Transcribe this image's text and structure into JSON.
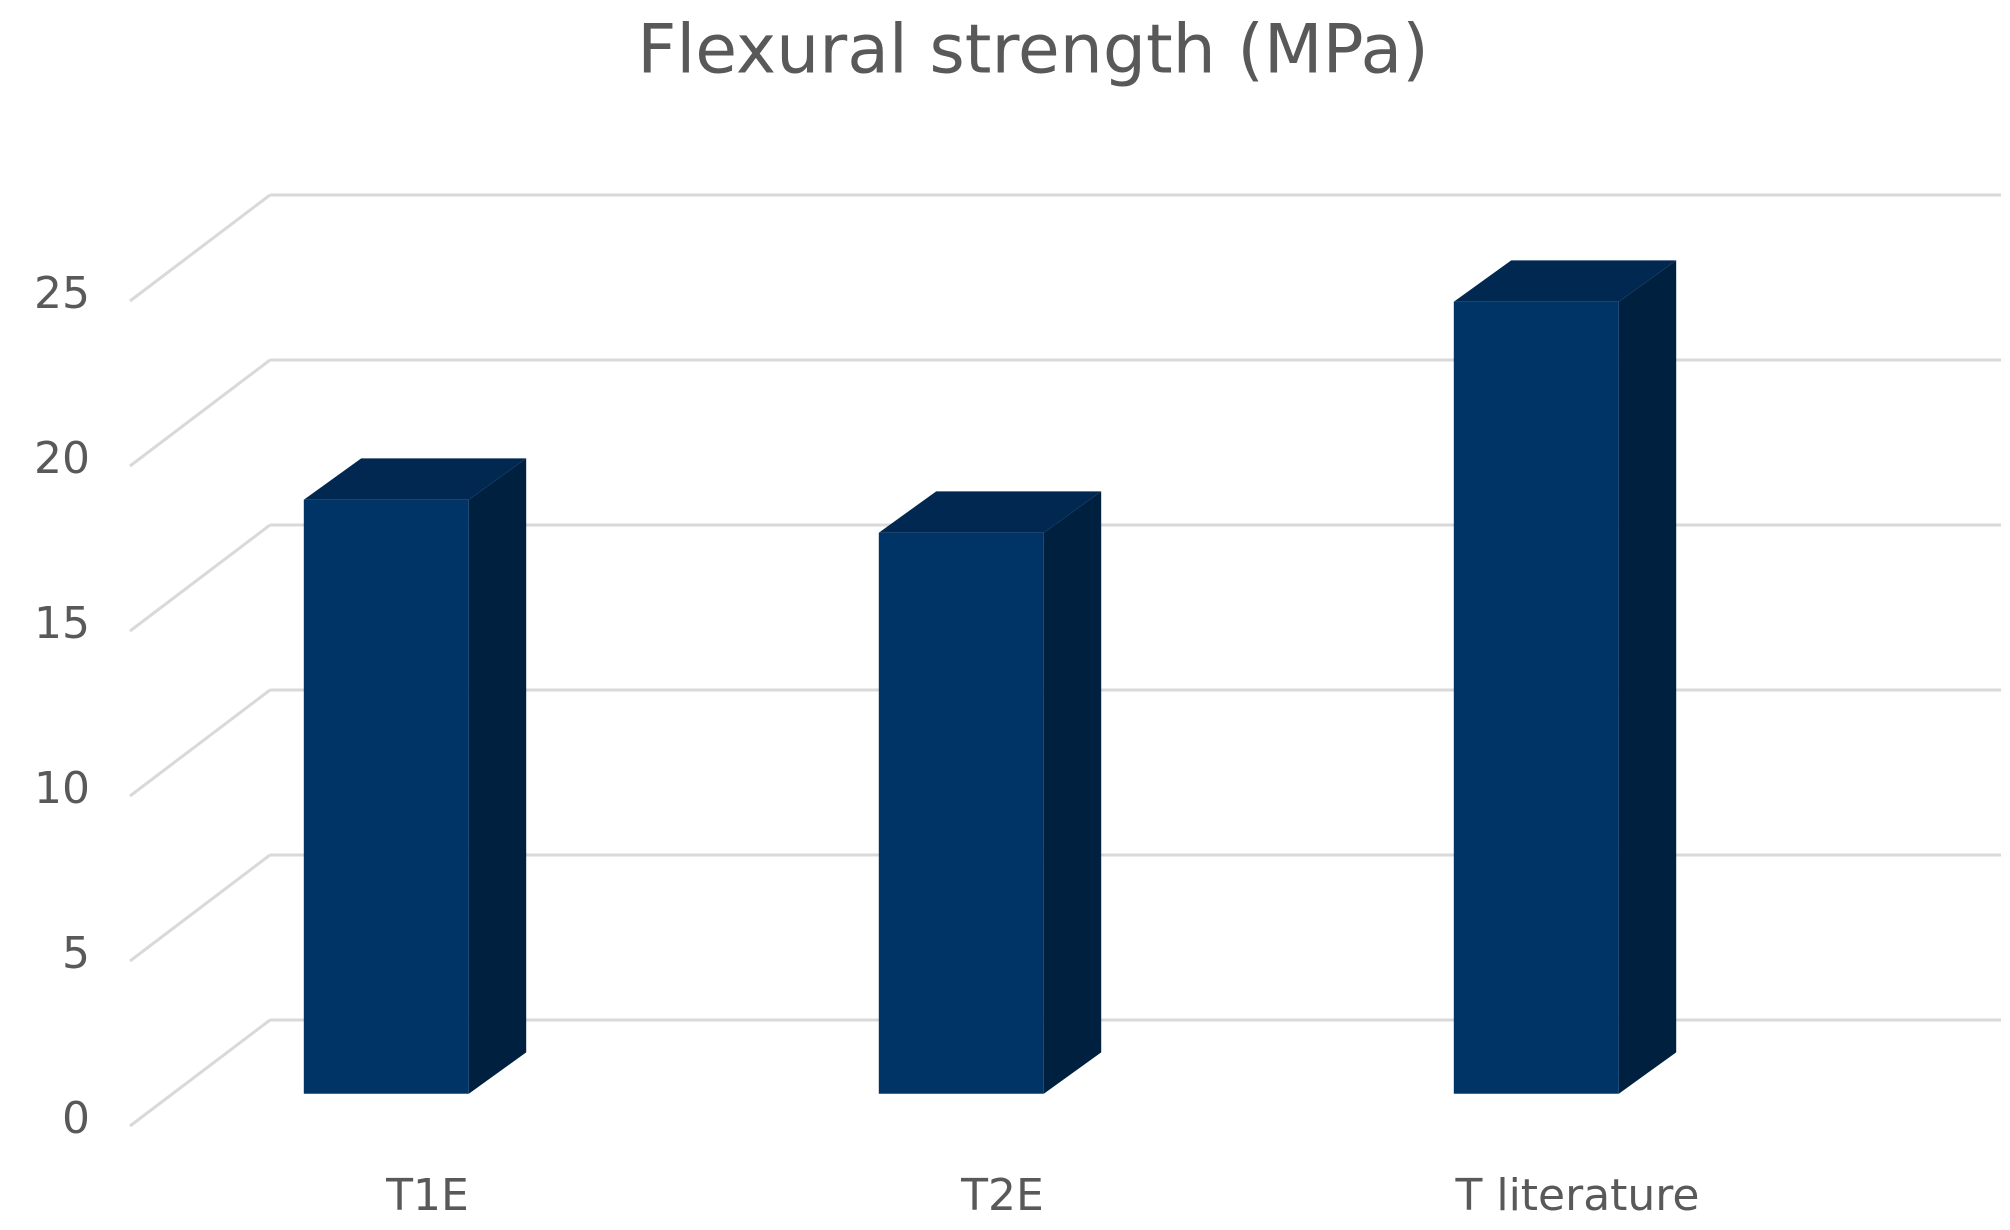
{
  "chart_data": {
    "type": "bar3d",
    "title": "Flexural strength (MPa)",
    "categories": [
      "T1E",
      "T2E",
      "T literature"
    ],
    "values": [
      18,
      17,
      24
    ],
    "color": "#003366",
    "ylim": [
      0,
      25
    ],
    "yticks": [
      0,
      5,
      10,
      15,
      20,
      25
    ],
    "grid": true
  }
}
